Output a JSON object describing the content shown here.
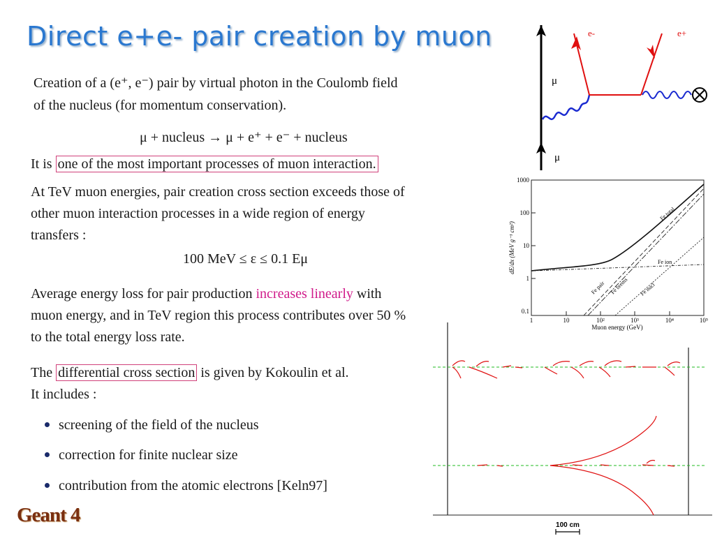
{
  "title": "Direct e+e- pair creation by muon",
  "intro": {
    "line1": "Creation of a (e⁺, e⁻) pair by virtual photon in the Coulomb field",
    "line2": "of the nucleus (for momentum conservation)."
  },
  "equation": "μ + nucleus → μ + e⁺ + e⁻ + nucleus",
  "importance": {
    "prefix": "It is ",
    "boxed": "one of the most important processes of muon interaction."
  },
  "tev": {
    "line1": "At TeV muon energies, pair creation cross section exceeds those of",
    "line2": "other muon interaction processes in a wide region of energy",
    "line3": "transfers :"
  },
  "range_equation": "100 MeV ≤ ε ≤ 0.1 Eμ",
  "avg": {
    "line1_pre": "Average energy loss for pair production ",
    "line1_hl": "increases linearly",
    "line1_post": " with",
    "line2": "muon energy, and in TeV region this process contributes over 50 %",
    "line3": "to the total energy loss rate."
  },
  "diff": {
    "prefix": "The ",
    "boxed": "differential cross section",
    "suffix": " is given by Kokoulin et al."
  },
  "includes": "It includes :",
  "bullets": [
    "screening of the field of the nucleus",
    "correction for finite nuclear size",
    "contribution from the atomic electrons [Keln97]"
  ],
  "footer": "Geant 4",
  "feynman": {
    "mu_top": "μ",
    "mu_bottom": "μ",
    "e_minus": "e-",
    "e_plus": "e+"
  },
  "plot": {
    "ylabel": "dE/dx  (MeV g⁻¹ cm²)",
    "xlabel": "Muon energy (GeV)",
    "y_ticks": [
      "1000",
      "100",
      "10",
      "1",
      "0.1"
    ],
    "x_ticks": [
      "1",
      "10",
      "10²",
      "10³",
      "10⁴",
      "10⁵"
    ],
    "curve_labels": {
      "total": "Fe total",
      "ion": "Fe ion",
      "pair": "Fe pair",
      "brems": "Fe brems",
      "nucl": "Fe nucl"
    }
  },
  "shower_scale": "100 cm",
  "colors": {
    "title": "#2a78d0",
    "box": "#d0407a",
    "highlight": "#d01a8a",
    "footer": "#7a2f10",
    "track_red": "#e01010",
    "track_green": "#22bb22"
  }
}
